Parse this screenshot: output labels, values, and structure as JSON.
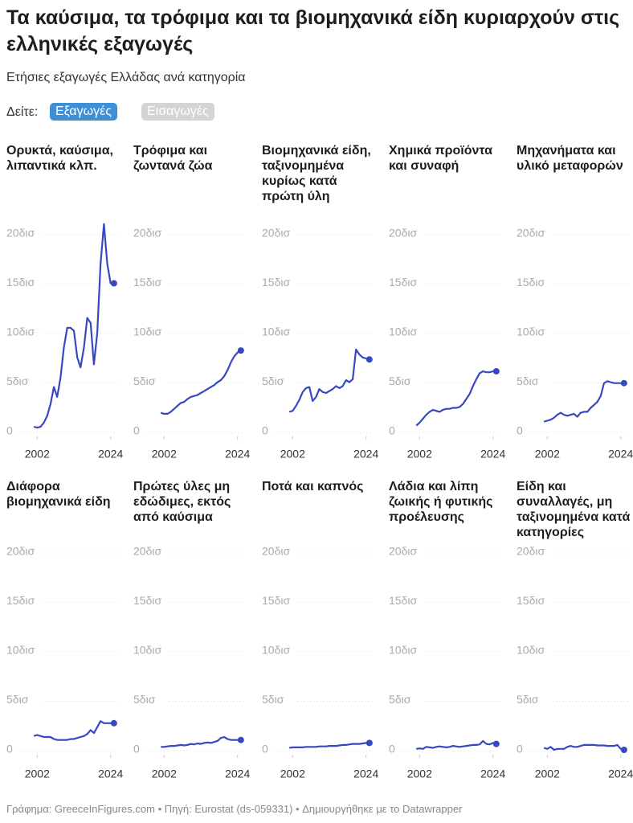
{
  "title": "Τα καύσιμα, τα τρόφιμα και τα βιομηχανικά είδη κυριαρχούν στις ελληνικές εξαγωγές",
  "subtitle": "Ετήσιες εξαγωγές Ελλάδας ανά κατηγορία",
  "selector_label": "Δείτε:",
  "buttons": [
    "Εξαγωγές",
    "Εισαγωγές"
  ],
  "footer": "Γράφημα: GreeceInFigures.com • Πηγή: Eurostat (ds-059331) • Δημιουργήθηκε με το Datawrapper",
  "chart_data": [
    {
      "type": "line",
      "title": "Ορυκτά, καύσιμα, λιπαντικά κλπ.",
      "color": "#3748c0",
      "x": [
        2001,
        2002,
        2003,
        2004,
        2005,
        2006,
        2007,
        2008,
        2009,
        2010,
        2011,
        2012,
        2013,
        2014,
        2015,
        2016,
        2017,
        2018,
        2019,
        2020,
        2021,
        2022,
        2023,
        2024,
        2025
      ],
      "values": [
        0.5,
        0.4,
        0.5,
        0.9,
        1.6,
        2.8,
        4.5,
        3.5,
        5.5,
        8.5,
        10.5,
        10.5,
        10.2,
        7.5,
        6.5,
        8.5,
        11.5,
        11,
        6.8,
        10,
        17,
        21,
        17,
        15,
        15
      ],
      "xlim": [
        2000,
        2026
      ],
      "xticks": [
        2002,
        2024
      ],
      "ylim": [
        0,
        20
      ],
      "yticks": [
        0,
        {
          "value": 5,
          "label": "5δισ"
        },
        {
          "value": 10,
          "label": "10δισ"
        },
        {
          "value": 15,
          "label": "15δισ"
        },
        {
          "value": 20,
          "label": "20δισ"
        }
      ]
    },
    {
      "type": "line",
      "title": "Τρόφιμα και ζωντανά ζώα",
      "color": "#3748c0",
      "x": [
        2001,
        2002,
        2003,
        2004,
        2005,
        2006,
        2007,
        2008,
        2009,
        2010,
        2011,
        2012,
        2013,
        2014,
        2015,
        2016,
        2017,
        2018,
        2019,
        2020,
        2021,
        2022,
        2023,
        2024,
        2025
      ],
      "values": [
        1.9,
        1.8,
        1.8,
        2.0,
        2.3,
        2.6,
        2.9,
        3.0,
        3.3,
        3.5,
        3.6,
        3.7,
        3.9,
        4.1,
        4.3,
        4.5,
        4.7,
        5.0,
        5.2,
        5.6,
        6.2,
        7.0,
        7.6,
        8.0,
        8.2
      ],
      "xlim": [
        2000,
        2026
      ],
      "xticks": [
        2002,
        2024
      ],
      "ylim": [
        0,
        20
      ],
      "yticks": [
        0,
        {
          "value": 5,
          "label": "5δισ"
        },
        {
          "value": 10,
          "label": "10δισ"
        },
        {
          "value": 15,
          "label": "15δισ"
        },
        {
          "value": 20,
          "label": "20δισ"
        }
      ]
    },
    {
      "type": "line",
      "title": "Βιομηχανικά είδη, ταξινομημένα κυρίως κατά πρώτη ύλη",
      "color": "#3748c0",
      "x": [
        2001,
        2002,
        2003,
        2004,
        2005,
        2006,
        2007,
        2008,
        2009,
        2010,
        2011,
        2012,
        2013,
        2014,
        2015,
        2016,
        2017,
        2018,
        2019,
        2020,
        2021,
        2022,
        2023,
        2024,
        2025
      ],
      "values": [
        2.0,
        2.1,
        2.6,
        3.2,
        4.0,
        4.4,
        4.5,
        3.1,
        3.5,
        4.3,
        4.0,
        3.9,
        4.1,
        4.3,
        4.6,
        4.4,
        4.6,
        5.2,
        5.0,
        5.3,
        8.3,
        7.8,
        7.5,
        7.4,
        7.3
      ],
      "xlim": [
        2000,
        2026
      ],
      "xticks": [
        2002,
        2024
      ],
      "ylim": [
        0,
        20
      ],
      "yticks": [
        0,
        {
          "value": 5,
          "label": "5δισ"
        },
        {
          "value": 10,
          "label": "10δισ"
        },
        {
          "value": 15,
          "label": "15δισ"
        },
        {
          "value": 20,
          "label": "20δισ"
        }
      ]
    },
    {
      "type": "line",
      "title": "Χημικά προϊόντα και συναφή",
      "color": "#3748c0",
      "x": [
        2001,
        2002,
        2003,
        2004,
        2005,
        2006,
        2007,
        2008,
        2009,
        2010,
        2011,
        2012,
        2013,
        2014,
        2015,
        2016,
        2017,
        2018,
        2019,
        2020,
        2021,
        2022,
        2023,
        2024,
        2025
      ],
      "values": [
        0.6,
        0.9,
        1.3,
        1.7,
        2.0,
        2.2,
        2.1,
        2.0,
        2.2,
        2.3,
        2.3,
        2.4,
        2.4,
        2.5,
        2.8,
        3.3,
        3.8,
        4.6,
        5.3,
        5.9,
        6.1,
        6.0,
        6.0,
        6.1,
        6.1
      ],
      "xlim": [
        2000,
        2026
      ],
      "xticks": [
        2002,
        2024
      ],
      "ylim": [
        0,
        20
      ],
      "yticks": [
        0,
        {
          "value": 5,
          "label": "5δισ"
        },
        {
          "value": 10,
          "label": "10δισ"
        },
        {
          "value": 15,
          "label": "15δισ"
        },
        {
          "value": 20,
          "label": "20δισ"
        }
      ]
    },
    {
      "type": "line",
      "title": "Μηχανήματα και υλικό μεταφορών",
      "color": "#3748c0",
      "x": [
        2001,
        2002,
        2003,
        2004,
        2005,
        2006,
        2007,
        2008,
        2009,
        2010,
        2011,
        2012,
        2013,
        2014,
        2015,
        2016,
        2017,
        2018,
        2019,
        2020,
        2021,
        2022,
        2023,
        2024,
        2025
      ],
      "values": [
        1.0,
        1.1,
        1.2,
        1.4,
        1.7,
        1.9,
        1.7,
        1.6,
        1.7,
        1.8,
        1.5,
        1.9,
        2.0,
        2.0,
        2.4,
        2.7,
        3.0,
        3.6,
        4.9,
        5.1,
        5.0,
        4.9,
        4.9,
        4.9,
        4.9
      ],
      "xlim": [
        2000,
        2026
      ],
      "xticks": [
        2002,
        2024
      ],
      "ylim": [
        0,
        20
      ],
      "yticks": [
        0,
        {
          "value": 5,
          "label": "5δισ"
        },
        {
          "value": 10,
          "label": "10δισ"
        },
        {
          "value": 15,
          "label": "15δισ"
        },
        {
          "value": 20,
          "label": "20δισ"
        }
      ]
    },
    {
      "type": "line",
      "title": "Διάφορα βιομηχανικά είδη",
      "color": "#3748c0",
      "x": [
        2001,
        2002,
        2003,
        2004,
        2005,
        2006,
        2007,
        2008,
        2009,
        2010,
        2011,
        2012,
        2013,
        2014,
        2015,
        2016,
        2017,
        2018,
        2019,
        2020,
        2021,
        2022,
        2023,
        2024,
        2025
      ],
      "values": [
        1.4,
        1.5,
        1.4,
        1.3,
        1.3,
        1.3,
        1.1,
        1.0,
        1.0,
        1.0,
        1.0,
        1.1,
        1.1,
        1.2,
        1.3,
        1.4,
        1.6,
        2.0,
        1.7,
        2.3,
        2.9,
        2.7,
        2.7,
        2.7,
        2.7
      ],
      "xlim": [
        2000,
        2026
      ],
      "xticks": [
        2002,
        2024
      ],
      "ylim": [
        0,
        20
      ],
      "yticks": [
        0,
        {
          "value": 5,
          "label": "5δισ"
        },
        {
          "value": 10,
          "label": "10δισ"
        },
        {
          "value": 15,
          "label": "15δισ"
        },
        {
          "value": 20,
          "label": "20δισ"
        }
      ]
    },
    {
      "type": "line",
      "title": "Πρώτες ύλες μη εδώδιμες, εκτός από καύσιμα",
      "color": "#3748c0",
      "x": [
        2001,
        2002,
        2003,
        2004,
        2005,
        2006,
        2007,
        2008,
        2009,
        2010,
        2011,
        2012,
        2013,
        2014,
        2015,
        2016,
        2017,
        2018,
        2019,
        2020,
        2021,
        2022,
        2023,
        2024,
        2025
      ],
      "values": [
        0.3,
        0.3,
        0.35,
        0.4,
        0.4,
        0.45,
        0.5,
        0.45,
        0.5,
        0.6,
        0.55,
        0.65,
        0.6,
        0.7,
        0.75,
        0.7,
        0.8,
        0.9,
        1.2,
        1.3,
        1.1,
        1.0,
        1.0,
        1.0,
        1.0
      ],
      "xlim": [
        2000,
        2026
      ],
      "xticks": [
        2002,
        2024
      ],
      "ylim": [
        0,
        20
      ],
      "yticks": [
        0,
        {
          "value": 5,
          "label": "5δισ"
        },
        {
          "value": 10,
          "label": "10δισ"
        },
        {
          "value": 15,
          "label": "15δισ"
        },
        {
          "value": 20,
          "label": "20δισ"
        }
      ]
    },
    {
      "type": "line",
      "title": "Ποτά και καπνός",
      "color": "#3748c0",
      "x": [
        2001,
        2002,
        2003,
        2004,
        2005,
        2006,
        2007,
        2008,
        2009,
        2010,
        2011,
        2012,
        2013,
        2014,
        2015,
        2016,
        2017,
        2018,
        2019,
        2020,
        2021,
        2022,
        2023,
        2024,
        2025
      ],
      "values": [
        0.2,
        0.25,
        0.25,
        0.25,
        0.25,
        0.3,
        0.3,
        0.3,
        0.3,
        0.35,
        0.35,
        0.35,
        0.4,
        0.4,
        0.4,
        0.45,
        0.5,
        0.5,
        0.55,
        0.6,
        0.6,
        0.6,
        0.65,
        0.7,
        0.7
      ],
      "xlim": [
        2000,
        2026
      ],
      "xticks": [
        2002,
        2024
      ],
      "ylim": [
        0,
        20
      ],
      "yticks": [
        0,
        {
          "value": 5,
          "label": "5δισ"
        },
        {
          "value": 10,
          "label": "10δισ"
        },
        {
          "value": 15,
          "label": "15δισ"
        },
        {
          "value": 20,
          "label": "20δισ"
        }
      ]
    },
    {
      "type": "line",
      "title": "Λάδια και λίπη ζωικής ή φυτικής προέλευσης",
      "color": "#3748c0",
      "x": [
        2001,
        2002,
        2003,
        2004,
        2005,
        2006,
        2007,
        2008,
        2009,
        2010,
        2011,
        2012,
        2013,
        2014,
        2015,
        2016,
        2017,
        2018,
        2019,
        2020,
        2021,
        2022,
        2023,
        2024,
        2025
      ],
      "values": [
        0.1,
        0.15,
        0.1,
        0.3,
        0.25,
        0.2,
        0.3,
        0.35,
        0.3,
        0.25,
        0.3,
        0.4,
        0.35,
        0.3,
        0.35,
        0.4,
        0.45,
        0.5,
        0.5,
        0.55,
        0.9,
        0.6,
        0.55,
        0.7,
        0.6
      ],
      "xlim": [
        2000,
        2026
      ],
      "xticks": [
        2002,
        2024
      ],
      "ylim": [
        0,
        20
      ],
      "yticks": [
        0,
        {
          "value": 5,
          "label": "5δισ"
        },
        {
          "value": 10,
          "label": "10δισ"
        },
        {
          "value": 15,
          "label": "15δισ"
        },
        {
          "value": 20,
          "label": "20δισ"
        }
      ]
    },
    {
      "type": "line",
      "title": "Είδη και συναλλαγές, μη ταξινομημένα κατά κατηγορίες",
      "color": "#3748c0",
      "x": [
        2001,
        2002,
        2003,
        2004,
        2005,
        2006,
        2007,
        2008,
        2009,
        2010,
        2011,
        2012,
        2013,
        2014,
        2015,
        2016,
        2017,
        2018,
        2019,
        2020,
        2021,
        2022,
        2023,
        2024,
        2025
      ],
      "values": [
        0.2,
        0.1,
        0.3,
        0.0,
        0.1,
        0.1,
        0.1,
        0.3,
        0.4,
        0.3,
        0.3,
        0.4,
        0.5,
        0.5,
        0.5,
        0.5,
        0.45,
        0.45,
        0.45,
        0.4,
        0.4,
        0.4,
        0.5,
        0.1,
        0.0
      ],
      "xlim": [
        2000,
        2026
      ],
      "xticks": [
        2002,
        2024
      ],
      "ylim": [
        0,
        20
      ],
      "yticks": [
        0,
        {
          "value": 5,
          "label": "5δισ"
        },
        {
          "value": 10,
          "label": "10δισ"
        },
        {
          "value": 15,
          "label": "15δισ"
        },
        {
          "value": 20,
          "label": "20δισ"
        }
      ]
    }
  ]
}
